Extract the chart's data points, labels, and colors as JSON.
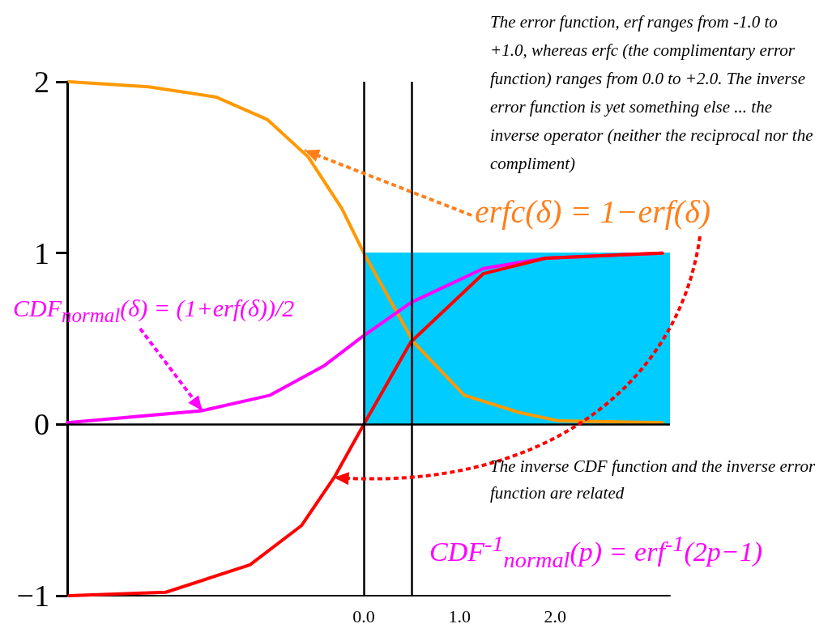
{
  "chart_data": {
    "type": "line",
    "xlim": [
      -3.1,
      3.2
    ],
    "ylim": [
      -1,
      2
    ],
    "xticks": [
      {
        "value": 0,
        "label": "0.0"
      },
      {
        "value": 1,
        "label": "1.0"
      },
      {
        "value": 2,
        "label": "2.0"
      }
    ],
    "yticks": [
      {
        "value": -1,
        "label": "−1"
      },
      0,
      1,
      2
    ],
    "series": [
      {
        "type": "area",
        "color": "#00ccff",
        "x": [
          0,
          3.2
        ],
        "values": [
          1,
          1
        ]
      },
      {
        "color": "#ff9900",
        "x": [
          -3.08,
          -2.25,
          -1.54,
          -1.01,
          -0.58,
          -0.23,
          0,
          0.52,
          1.05,
          1.62,
          2.04,
          3.12
        ],
        "values": [
          2,
          1.97,
          1.91,
          1.78,
          1.56,
          1.26,
          1,
          0.48,
          0.17,
          0.07,
          0.02,
          0.01
        ]
      },
      {
        "color": "#ff00ff",
        "x": [
          -3.1,
          -1.69,
          -0.98,
          -0.42,
          -0.02,
          0.49,
          1.25,
          1.9,
          3.12
        ],
        "values": [
          0.01,
          0.08,
          0.17,
          0.34,
          0.51,
          0.71,
          0.91,
          0.97,
          1
        ]
      },
      {
        "color": "#ff0000",
        "x": [
          -3.08,
          -2.07,
          -1.19,
          -0.65,
          -0.31,
          0,
          0.49,
          1.25,
          1.9,
          3.12
        ],
        "values": [
          -1,
          -0.98,
          -0.82,
          -0.59,
          -0.31,
          0,
          0.48,
          0.88,
          0.97,
          1
        ]
      }
    ],
    "ref_lines": [
      {
        "axis": "y",
        "value": 0,
        "color": "#000000"
      },
      {
        "axis": "x",
        "value": 0,
        "color": "#000000"
      },
      {
        "axis": "x",
        "value": 0.5,
        "color": "#000000"
      }
    ],
    "annotations": [
      "The error function, erf ranges from -1.0 to +1.0, whereas erfc (the complimentary error function) ranges from 0.0 to +2.0. The inverse error function is yet something else ... the inverse operator (neither the reciprocal nor the compliment)",
      {
        "text": "erfc(δ) = 1−erf(δ)",
        "x": -0.62,
        "y": 1.6
      },
      {
        "text": "CDF$_{normal}$(δ) = (1+erf(δ))/2",
        "x": -1.69,
        "y": 0.08
      },
      "The inverse CDF function and the inverse error function are related",
      "CDF$^{-1}$$_{normal}$(p) = erf$^{-1}$(2p−1)"
    ]
  }
}
